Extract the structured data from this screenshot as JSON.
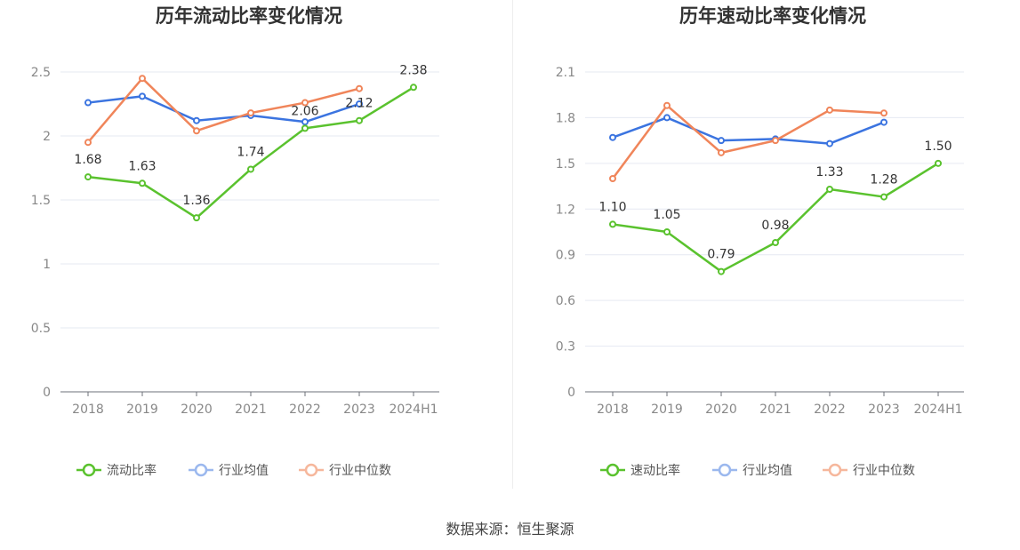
{
  "chart_data": [
    {
      "type": "line",
      "title": "历年流动比率变化情况",
      "categories": [
        "2018",
        "2019",
        "2020",
        "2021",
        "2022",
        "2023",
        "2024H1"
      ],
      "ylim": [
        0,
        2.5
      ],
      "yticks": [
        "0",
        "0.5",
        "1",
        "1.5",
        "2",
        "2.5"
      ],
      "series": [
        {
          "name": "流动比率",
          "color": "#5ac22e",
          "labels": true,
          "values": [
            1.68,
            1.63,
            1.36,
            1.74,
            2.06,
            2.12,
            2.38
          ],
          "value_labels": [
            "1.68",
            "1.63",
            "1.36",
            "1.74",
            "2.06",
            "2.12",
            "2.38"
          ]
        },
        {
          "name": "行业均值",
          "color": "#3b74e0",
          "labels": false,
          "values": [
            2.26,
            2.31,
            2.12,
            2.16,
            2.11,
            2.25,
            null
          ]
        },
        {
          "name": "行业中位数",
          "color": "#f0855a",
          "labels": false,
          "values": [
            1.95,
            2.45,
            2.04,
            2.18,
            2.26,
            2.37,
            null
          ]
        }
      ]
    },
    {
      "type": "line",
      "title": "历年速动比率变化情况",
      "categories": [
        "2018",
        "2019",
        "2020",
        "2021",
        "2022",
        "2023",
        "2024H1"
      ],
      "ylim": [
        0,
        2.1
      ],
      "yticks": [
        "0",
        "0.3",
        "0.6",
        "0.9",
        "1.2",
        "1.5",
        "1.8",
        "2.1"
      ],
      "series": [
        {
          "name": "速动比率",
          "color": "#5ac22e",
          "labels": true,
          "values": [
            1.1,
            1.05,
            0.79,
            0.98,
            1.33,
            1.28,
            1.5
          ],
          "value_labels": [
            "1.10",
            "1.05",
            "0.79",
            "0.98",
            "1.33",
            "1.28",
            "1.50"
          ]
        },
        {
          "name": "行业均值",
          "color": "#3b74e0",
          "labels": false,
          "values": [
            1.67,
            1.8,
            1.65,
            1.66,
            1.63,
            1.77,
            null
          ]
        },
        {
          "name": "行业中位数",
          "color": "#f0855a",
          "labels": false,
          "values": [
            1.4,
            1.88,
            1.57,
            1.65,
            1.85,
            1.83,
            null
          ]
        }
      ]
    }
  ],
  "footer": {
    "source": "数据来源：恒生聚源"
  }
}
